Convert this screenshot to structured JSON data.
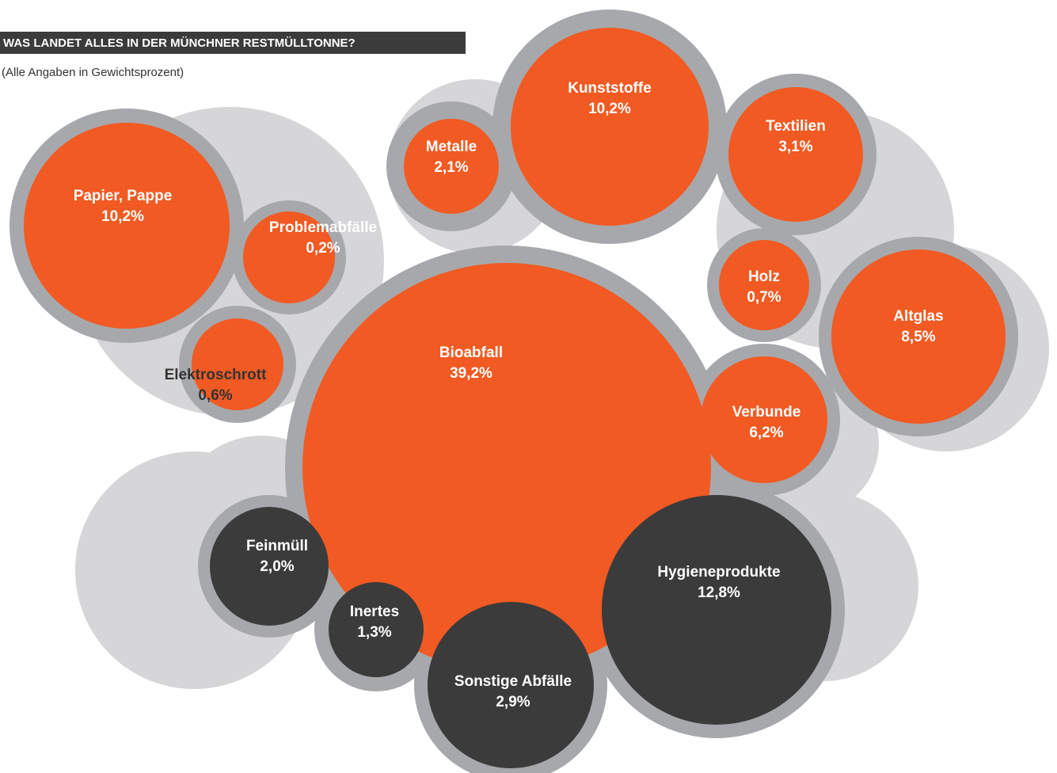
{
  "chart_data": {
    "type": "bubble",
    "title": "WAS LANDET ALLES IN DER MÜNCHNER RESTMÜLLTONNE?",
    "subtitle": "(Alle Angaben in Gewichtsprozent)",
    "categories": [
      "Papier, Pappe",
      "Problemabfälle",
      "Elektroschrott",
      "Metalle",
      "Kunststoffe",
      "Textilien",
      "Holz",
      "Altglas",
      "Verbunde",
      "Bioabfall",
      "Feinmüll",
      "Inertes",
      "Sonstige Abfälle",
      "Hygieneprodukte"
    ],
    "values": [
      10.2,
      0.2,
      0.6,
      2.1,
      10.2,
      3.1,
      0.7,
      8.5,
      6.2,
      39.2,
      2.0,
      1.3,
      2.9,
      12.8
    ],
    "value_labels": [
      "10,2%",
      "0,2%",
      "0,6%",
      "2,1%",
      "10,2%",
      "3,1%",
      "0,7%",
      "8,5%",
      "6,2%",
      "39,2%",
      "2,0%",
      "1,3%",
      "2,9%",
      "12,8%"
    ],
    "colors": [
      "#f15a22",
      "#f15a22",
      "#f15a22",
      "#f15a22",
      "#f15a22",
      "#f15a22",
      "#f15a22",
      "#f15a22",
      "#f15a22",
      "#f15a22",
      "#3b3b3b",
      "#3b3b3b",
      "#3b3b3b",
      "#3b3b3b"
    ]
  }
}
